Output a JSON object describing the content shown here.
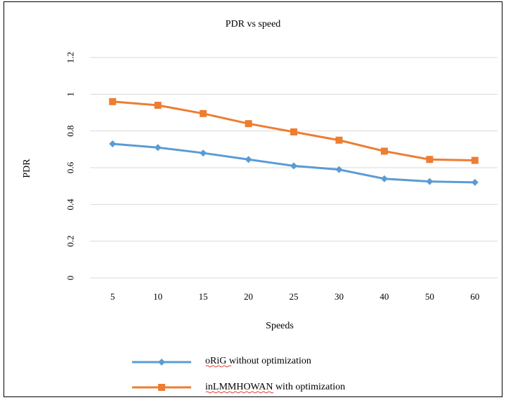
{
  "chart_data": {
    "type": "line",
    "title": "PDR vs speed",
    "xlabel": "Speeds",
    "ylabel": "PDR",
    "categories": [
      "5",
      "10",
      "15",
      "20",
      "25",
      "30",
      "40",
      "50",
      "60"
    ],
    "ylim": [
      0,
      1.2
    ],
    "yticks": [
      "0",
      "0.2",
      "0.4",
      "0.6",
      "0.8",
      "1",
      "1.2"
    ],
    "grid": "horizontal",
    "legend_position": "bottom",
    "series": [
      {
        "name": "oRiG without optimization",
        "color": "#5b9bd5",
        "marker": "diamond",
        "values": [
          0.73,
          0.71,
          0.68,
          0.645,
          0.61,
          0.59,
          0.54,
          0.525,
          0.52
        ]
      },
      {
        "name": "inLMMHOWAN with optimization",
        "color": "#ed7d31",
        "marker": "square",
        "values": [
          0.96,
          0.94,
          0.895,
          0.84,
          0.795,
          0.75,
          0.69,
          0.645,
          0.64
        ]
      }
    ]
  }
}
